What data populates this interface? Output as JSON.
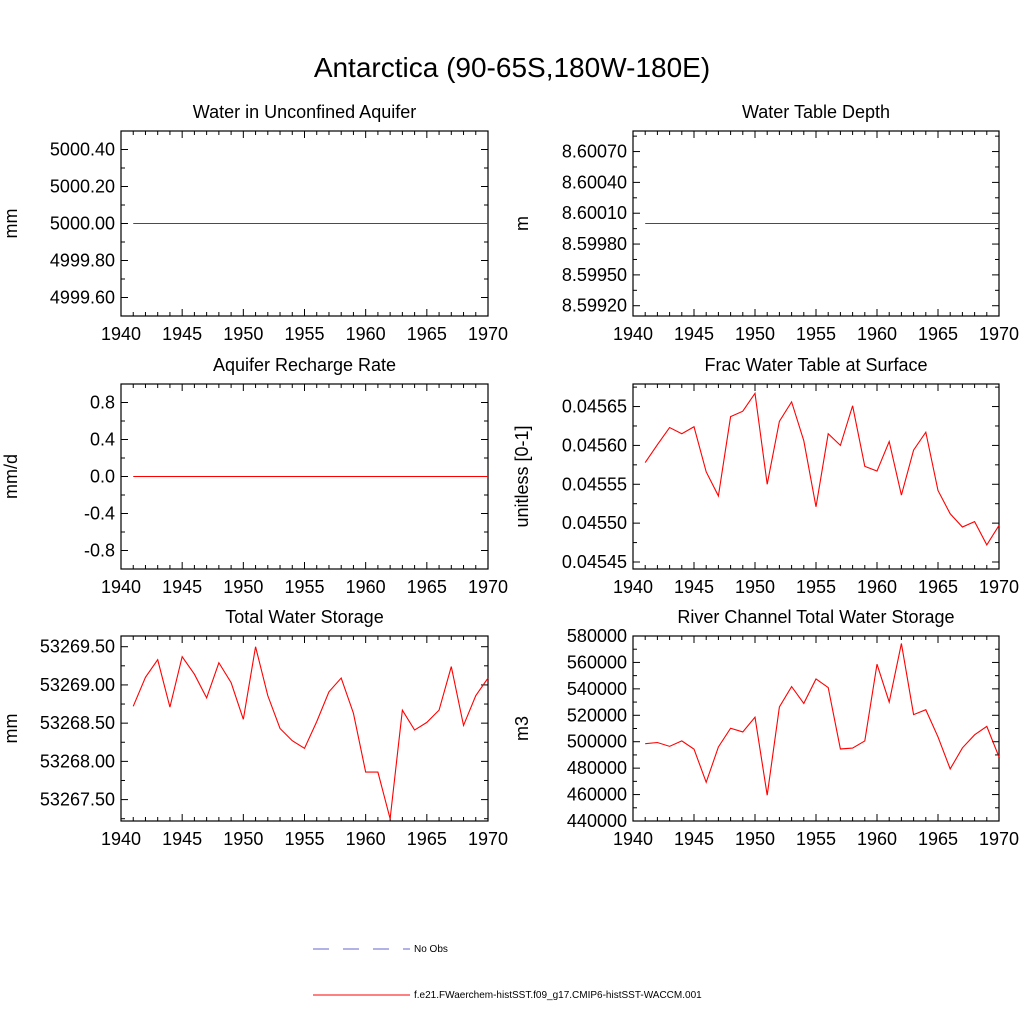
{
  "title": "Antarctica (90-65S,180W-180E)",
  "colors": {
    "model": "#ff0000",
    "obs": "#6666cc",
    "axis": "#000000"
  },
  "legend": {
    "obs_label": "No Obs",
    "model_label": "f.e21.FWaerchem-histSST.f09_g17.CMIP6-histSST-WACCM.001"
  },
  "chart_data": [
    {
      "type": "line",
      "title": "Water in Unconfined Aquifer",
      "ylabel": "mm",
      "xlim": [
        1940,
        1970
      ],
      "ylim": [
        4999.5,
        5000.5
      ],
      "xticks": [
        1940,
        1945,
        1950,
        1955,
        1960,
        1965,
        1970
      ],
      "yticks": [
        4999.6,
        4999.8,
        5000.0,
        5000.2,
        5000.4
      ],
      "ytick_labels": [
        "4999.60",
        "4999.80",
        "5000.00",
        "5000.20",
        "5000.40"
      ],
      "series": [
        {
          "x": [
            1941,
            1970
          ],
          "y": [
            5000.0,
            5000.0
          ]
        }
      ]
    },
    {
      "type": "line",
      "title": "Water Table Depth",
      "ylabel": "m",
      "xlim": [
        1940,
        1970
      ],
      "ylim": [
        8.5991,
        8.6009
      ],
      "xticks": [
        1940,
        1945,
        1950,
        1955,
        1960,
        1965,
        1970
      ],
      "yticks": [
        8.5992,
        8.5995,
        8.5998,
        8.6001,
        8.6004,
        8.6007
      ],
      "ytick_labels": [
        "8.59920",
        "8.59950",
        "8.59980",
        "8.60010",
        "8.60040",
        "8.60070"
      ],
      "series": [
        {
          "x": [
            1941,
            1970
          ],
          "y": [
            8.6,
            8.6
          ]
        }
      ]
    },
    {
      "type": "line",
      "title": "Aquifer Recharge Rate",
      "ylabel": "mm/d",
      "xlim": [
        1940,
        1970
      ],
      "ylim": [
        -1.0,
        1.0
      ],
      "xticks": [
        1940,
        1945,
        1950,
        1955,
        1960,
        1965,
        1970
      ],
      "yticks": [
        -0.8,
        -0.4,
        0.0,
        0.4,
        0.8
      ],
      "ytick_labels": [
        "-0.8",
        "-0.4",
        "0.0",
        "0.4",
        "0.8"
      ],
      "series": [
        {
          "x": [
            1941,
            1970
          ],
          "y": [
            0.0,
            0.0
          ]
        }
      ]
    },
    {
      "type": "line",
      "title": "Frac Water Table at Surface",
      "ylabel": "unitless [0-1]",
      "xlim": [
        1940,
        1970
      ],
      "ylim": [
        0.045441,
        0.045679
      ],
      "xticks": [
        1940,
        1945,
        1950,
        1955,
        1960,
        1965,
        1970
      ],
      "yticks": [
        0.04545,
        0.0455,
        0.04555,
        0.0456,
        0.04565
      ],
      "ytick_labels": [
        "0.04545",
        "0.04550",
        "0.04555",
        "0.04560",
        "0.04565"
      ],
      "series": [
        {
          "x": [
            1941,
            1942,
            1943,
            1944,
            1945,
            1946,
            1947,
            1948,
            1949,
            1950,
            1951,
            1952,
            1953,
            1954,
            1955,
            1956,
            1957,
            1958,
            1959,
            1960,
            1961,
            1962,
            1963,
            1964,
            1965,
            1966,
            1967,
            1968,
            1969,
            1970
          ],
          "y": [
            0.045578,
            0.045601,
            0.045623,
            0.045615,
            0.045624,
            0.045566,
            0.045535,
            0.045637,
            0.045644,
            0.045667,
            0.04555,
            0.045631,
            0.045656,
            0.045606,
            0.045521,
            0.045615,
            0.0456,
            0.045651,
            0.045573,
            0.045567,
            0.045605,
            0.045536,
            0.045594,
            0.045617,
            0.045542,
            0.045512,
            0.045495,
            0.045502,
            0.045472,
            0.045497
          ]
        }
      ]
    },
    {
      "type": "line",
      "title": "Total Water Storage",
      "ylabel": "mm",
      "xlim": [
        1940,
        1970
      ],
      "ylim": [
        53267.22,
        53269.64
      ],
      "xticks": [
        1940,
        1945,
        1950,
        1955,
        1960,
        1965,
        1970
      ],
      "yticks": [
        53267.5,
        53268.0,
        53268.5,
        53269.0,
        53269.5
      ],
      "ytick_labels": [
        "53267.50",
        "53268.00",
        "53268.50",
        "53269.00",
        "53269.50"
      ],
      "series": [
        {
          "x": [
            1941,
            1942,
            1943,
            1944,
            1945,
            1946,
            1947,
            1948,
            1949,
            1950,
            1951,
            1952,
            1953,
            1954,
            1955,
            1956,
            1957,
            1958,
            1959,
            1960,
            1961,
            1962,
            1963,
            1964,
            1965,
            1966,
            1967,
            1968,
            1969,
            1970
          ],
          "y": [
            53268.72,
            53269.1,
            53269.33,
            53268.71,
            53269.37,
            53269.14,
            53268.83,
            53269.29,
            53269.03,
            53268.55,
            53269.5,
            53268.86,
            53268.43,
            53268.27,
            53268.17,
            53268.52,
            53268.91,
            53269.09,
            53268.63,
            53267.86,
            53267.86,
            53267.25,
            53268.67,
            53268.41,
            53268.51,
            53268.67,
            53269.24,
            53268.47,
            53268.86,
            53269.09
          ]
        }
      ]
    },
    {
      "type": "line",
      "title": "River Channel Total Water Storage",
      "ylabel": "m3",
      "xlim": [
        1940,
        1970
      ],
      "ylim": [
        440000,
        580000
      ],
      "xticks": [
        1940,
        1945,
        1950,
        1955,
        1960,
        1965,
        1970
      ],
      "yticks": [
        440000,
        460000,
        480000,
        500000,
        520000,
        540000,
        560000,
        580000
      ],
      "ytick_labels": [
        "440000",
        "460000",
        "480000",
        "500000",
        "520000",
        "540000",
        "560000",
        "580000"
      ],
      "series": [
        {
          "x": [
            1941,
            1942,
            1943,
            1944,
            1945,
            1946,
            1947,
            1948,
            1949,
            1950,
            1951,
            1952,
            1953,
            1954,
            1955,
            1956,
            1957,
            1958,
            1959,
            1960,
            1961,
            1962,
            1963,
            1964,
            1965,
            1966,
            1967,
            1968,
            1969,
            1970
          ],
          "y": [
            498500,
            499400,
            496500,
            500600,
            494400,
            469300,
            496000,
            510200,
            507400,
            518600,
            459500,
            526300,
            541700,
            529000,
            547500,
            541000,
            494500,
            495200,
            500600,
            558700,
            530000,
            574300,
            520500,
            524200,
            503600,
            479400,
            495300,
            505200,
            511600,
            488500
          ]
        }
      ]
    }
  ]
}
